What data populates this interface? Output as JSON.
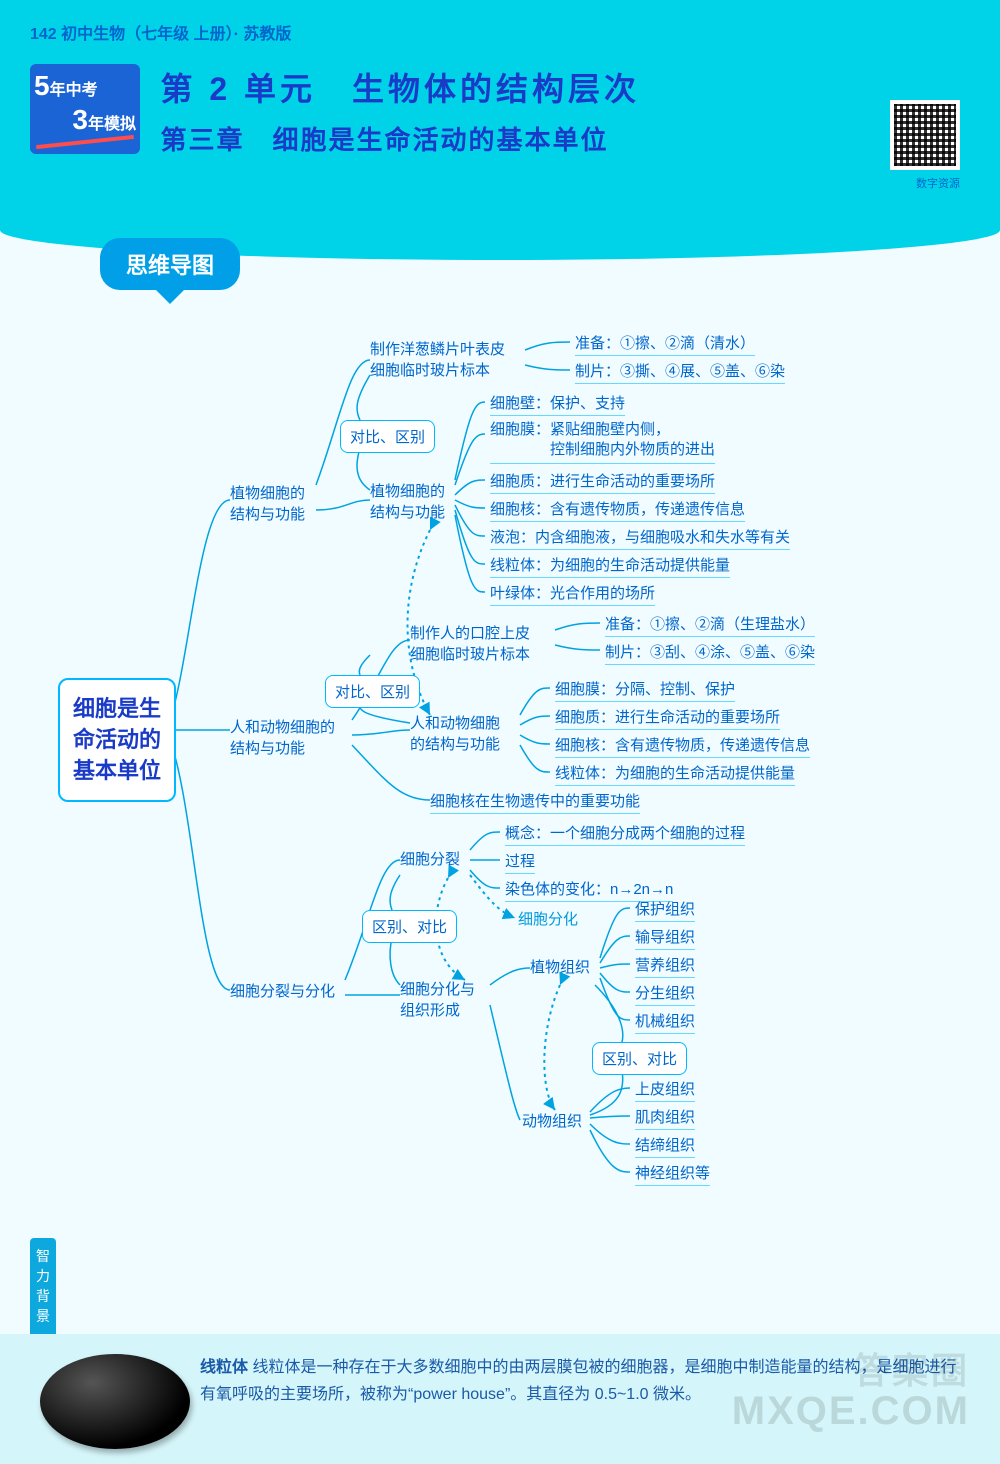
{
  "page": {
    "header_line": "142 初中生物（七年级 上册）· 苏教版",
    "badge_line1_big": "5",
    "badge_line1_small": "年中考",
    "badge_line2_big": "3",
    "badge_line2_small": "年模拟",
    "unit_title": "第 2 单元　生物体的结构层次",
    "chapter_title": "第三章　细胞是生命活动的基本单位",
    "qr_label": "数字资源",
    "section_tab": "思维导图",
    "side_tab": "智力背景",
    "footer_title": "线粒体",
    "footer_body": "线粒体是一种存在于大多数细胞中的由两层膜包被的细胞器，是细胞中制造能量的结构，是细胞进行有氧呼吸的主要场所，被称为“power house”。其直径为 0.5~1.0 微米。",
    "watermark1": "MXQE.COM",
    "watermark2": "答案圈"
  },
  "diagram": {
    "root": "细胞是生\n命活动的\n基本单位",
    "nodes": {
      "n_onion": "制作洋葱鳞片叶表皮\n细胞临时玻片标本",
      "n_plant_sf_l": "植物细胞的\n结构与功能",
      "n_compare1": "对比、区别",
      "n_plant_sf_r": "植物细胞的\n结构与功能",
      "n_compare2": "对比、区别",
      "n_animal_sf_l": "人和动物细胞的\n结构与功能",
      "n_oral": "制作人的口腔上皮\n细胞临时玻片标本",
      "n_animal_sf_r": "人和动物细胞\n的结构与功能",
      "n_split_diff": "细胞分裂与分化",
      "n_split": "细胞分裂",
      "n_compare3": "区别、对比",
      "n_diff_form": "细胞分化与\n组织形成",
      "n_plant_tissue": "植物组织",
      "n_animal_tissue": "动物组织",
      "n_compare4": "区别、对比"
    },
    "labels": {
      "l_splitdiff": "细胞分化"
    },
    "leaves": {
      "prep1": "准备：①擦、②滴（清水）",
      "prep2": "制片：③撕、④展、⑤盖、⑥染",
      "pc1": "细胞壁：保护、支持",
      "pc2": "细胞膜：紧贴细胞壁内侧，\n　　　　控制细胞内外物质的进出",
      "pc3": "细胞质：进行生命活动的重要场所",
      "pc4": "细胞核：含有遗传物质，传递遗传信息",
      "pc5": "液泡：内含细胞液，与细胞吸水和失水等有关",
      "pc6": "线粒体：为细胞的生命活动提供能量",
      "pc7": "叶绿体：光合作用的场所",
      "prep3": "准备：①擦、②滴（生理盐水）",
      "prep4": "制片：③刮、④涂、⑤盖、⑥染",
      "ac1": "细胞膜：分隔、控制、保护",
      "ac2": "细胞质：进行生命活动的重要场所",
      "ac3": "细胞核：含有遗传物质，传递遗传信息",
      "ac4": "线粒体：为细胞的生命活动提供能量",
      "nuc": "细胞核在生物遗传中的重要功能",
      "sp1": "概念：一个细胞分成两个细胞的过程",
      "sp2": "过程",
      "sp3": "染色体的变化：n→2n→n",
      "pt1": "保护组织",
      "pt2": "输导组织",
      "pt3": "营养组织",
      "pt4": "分生组织",
      "pt5": "机械组织",
      "at1": "上皮组织",
      "at2": "肌肉组织",
      "at3": "结缔组织",
      "at4": "神经组织等"
    }
  },
  "style": {
    "accent": "#00d3e8",
    "line": "#00a3e0",
    "text": "#0066cc",
    "node_border": "#00b8ff",
    "bg": "#f0fcff",
    "font_leaf": 15
  }
}
